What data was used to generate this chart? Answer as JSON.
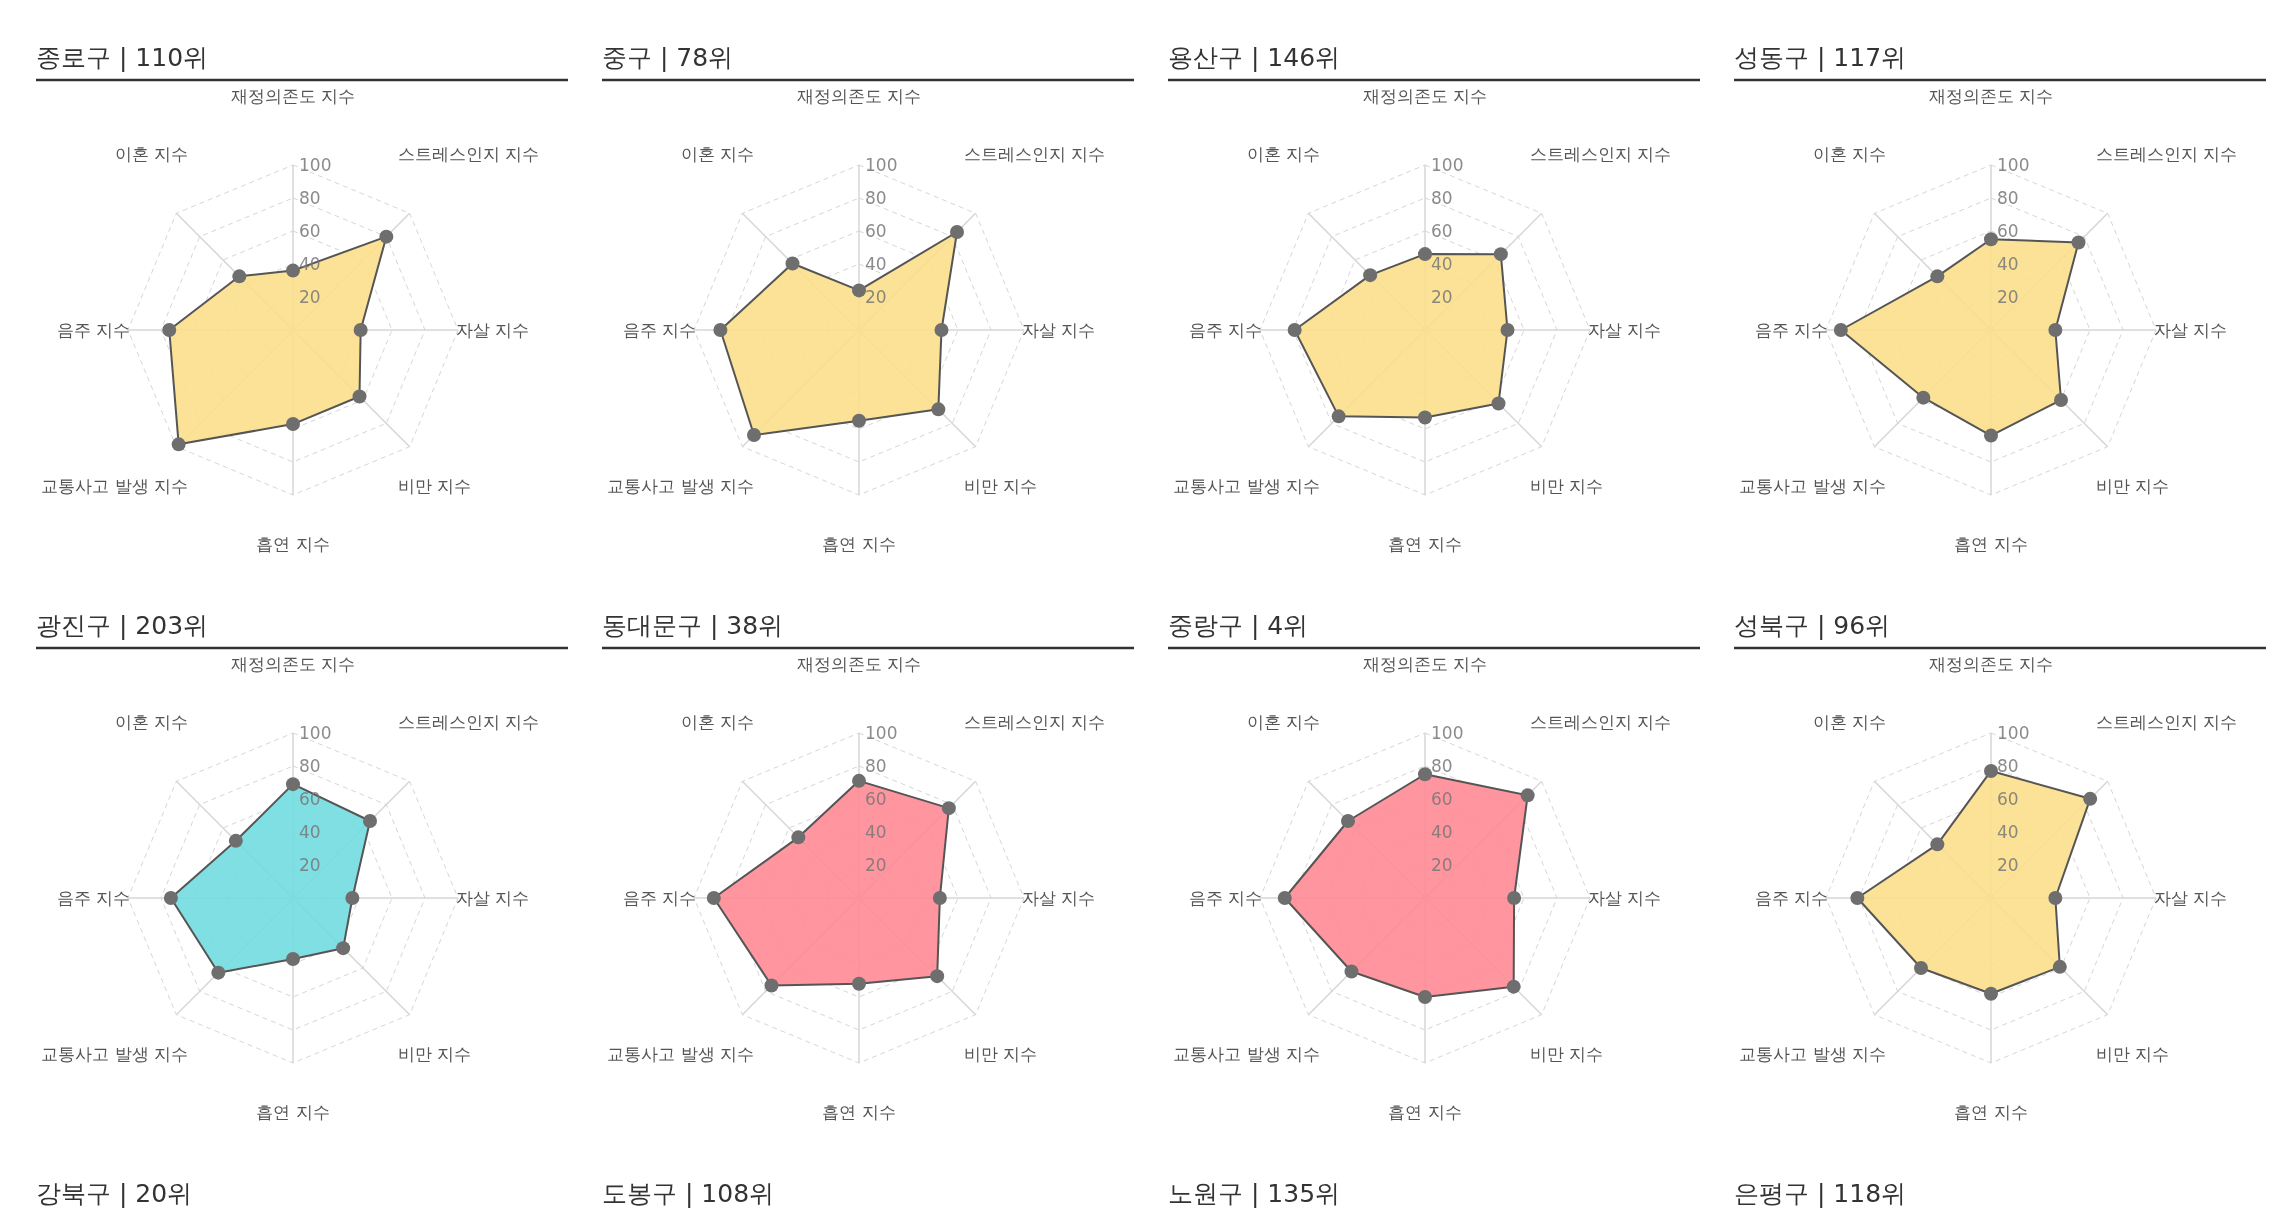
{
  "chart_data": [
    {
      "type": "radar",
      "title": "종로구 | 110위",
      "categories": [
        "재정의존도 지수",
        "스트레스인지 지수",
        "자살 지수",
        "비만 지수",
        "흡연 지수",
        "교통사고 발생 지수",
        "음주 지수",
        "이혼 지수"
      ],
      "ylim": [
        0,
        100
      ],
      "yticks": [
        20,
        40,
        60,
        80,
        100
      ],
      "grid": true,
      "marker": "circle",
      "series": [
        {
          "color": "#fbdf8b",
          "values": [
            36,
            80,
            41,
            57,
            57,
            98,
            75,
            46
          ]
        }
      ]
    },
    {
      "type": "radar",
      "title": "중구 | 78위",
      "categories": [
        "재정의존도 지수",
        "스트레스인지 지수",
        "자살 지수",
        "비만 지수",
        "흡연 지수",
        "교통사고 발생 지수",
        "음주 지수",
        "이혼 지수"
      ],
      "ylim": [
        0,
        100
      ],
      "yticks": [
        20,
        40,
        60,
        80,
        100
      ],
      "grid": true,
      "marker": "circle",
      "series": [
        {
          "color": "#fbdf8b",
          "values": [
            24,
            84,
            50,
            68,
            55,
            90,
            84,
            57
          ]
        }
      ]
    },
    {
      "type": "radar",
      "title": "용산구 | 146위",
      "categories": [
        "재정의존도 지수",
        "스트레스인지 지수",
        "자살 지수",
        "비만 지수",
        "흡연 지수",
        "교통사고 발생 지수",
        "음주 지수",
        "이혼 지수"
      ],
      "ylim": [
        0,
        100
      ],
      "yticks": [
        20,
        40,
        60,
        80,
        100
      ],
      "grid": true,
      "marker": "circle",
      "series": [
        {
          "color": "#fbdf8b",
          "values": [
            46,
            65,
            50,
            63,
            53,
            74,
            79,
            47
          ]
        }
      ]
    },
    {
      "type": "radar",
      "title": "성동구 | 117위",
      "categories": [
        "재정의존도 지수",
        "스트레스인지 지수",
        "자살 지수",
        "비만 지수",
        "흡연 지수",
        "교통사고 발생 지수",
        "음주 지수",
        "이혼 지수"
      ],
      "ylim": [
        0,
        100
      ],
      "yticks": [
        20,
        40,
        60,
        80,
        100
      ],
      "grid": true,
      "marker": "circle",
      "series": [
        {
          "color": "#fbdf8b",
          "values": [
            55,
            75,
            39,
            60,
            64,
            58,
            91,
            46
          ]
        }
      ]
    },
    {
      "type": "radar",
      "title": "광진구 | 203위",
      "categories": [
        "재정의존도 지수",
        "스트레스인지 지수",
        "자살 지수",
        "비만 지수",
        "흡연 지수",
        "교통사고 발생 지수",
        "음주 지수",
        "이혼 지수"
      ],
      "ylim": [
        0,
        100
      ],
      "yticks": [
        20,
        40,
        60,
        80,
        100
      ],
      "grid": true,
      "marker": "circle",
      "series": [
        {
          "color": "#72dce0",
          "values": [
            69,
            66,
            36,
            43,
            37,
            64,
            74,
            49
          ]
        }
      ]
    },
    {
      "type": "radar",
      "title": "동대문구 | 38위",
      "categories": [
        "재정의존도 지수",
        "스트레스인지 지수",
        "자살 지수",
        "비만 지수",
        "흡연 지수",
        "교통사고 발생 지수",
        "음주 지수",
        "이혼 지수"
      ],
      "ylim": [
        0,
        100
      ],
      "yticks": [
        20,
        40,
        60,
        80,
        100
      ],
      "grid": true,
      "marker": "circle",
      "series": [
        {
          "color": "#ff8a93",
          "values": [
            71,
            77,
            49,
            67,
            52,
            75,
            88,
            52
          ]
        }
      ]
    },
    {
      "type": "radar",
      "title": "중랑구 | 4위",
      "categories": [
        "재정의존도 지수",
        "스트레스인지 지수",
        "자살 지수",
        "비만 지수",
        "흡연 지수",
        "교통사고 발생 지수",
        "음주 지수",
        "이혼 지수"
      ],
      "ylim": [
        0,
        100
      ],
      "yticks": [
        20,
        40,
        60,
        80,
        100
      ],
      "grid": true,
      "marker": "circle",
      "series": [
        {
          "color": "#ff8a93",
          "values": [
            75,
            88,
            54,
            76,
            60,
            63,
            85,
            66
          ]
        }
      ]
    },
    {
      "type": "radar",
      "title": "성북구 | 96위",
      "categories": [
        "재정의존도 지수",
        "스트레스인지 지수",
        "자살 지수",
        "비만 지수",
        "흡연 지수",
        "교통사고 발생 지수",
        "음주 지수",
        "이혼 지수"
      ],
      "ylim": [
        0,
        100
      ],
      "yticks": [
        20,
        40,
        60,
        80,
        100
      ],
      "grid": true,
      "marker": "circle",
      "series": [
        {
          "color": "#fbdf8b",
          "values": [
            77,
            85,
            39,
            59,
            58,
            60,
            81,
            46
          ]
        }
      ]
    },
    {
      "type": "other",
      "title": "강북구 | 20위"
    },
    {
      "type": "other",
      "title": "도봉구 | 108위"
    },
    {
      "type": "other",
      "title": "노원구 | 135위"
    },
    {
      "type": "other",
      "title": "은평구 | 118위"
    }
  ]
}
